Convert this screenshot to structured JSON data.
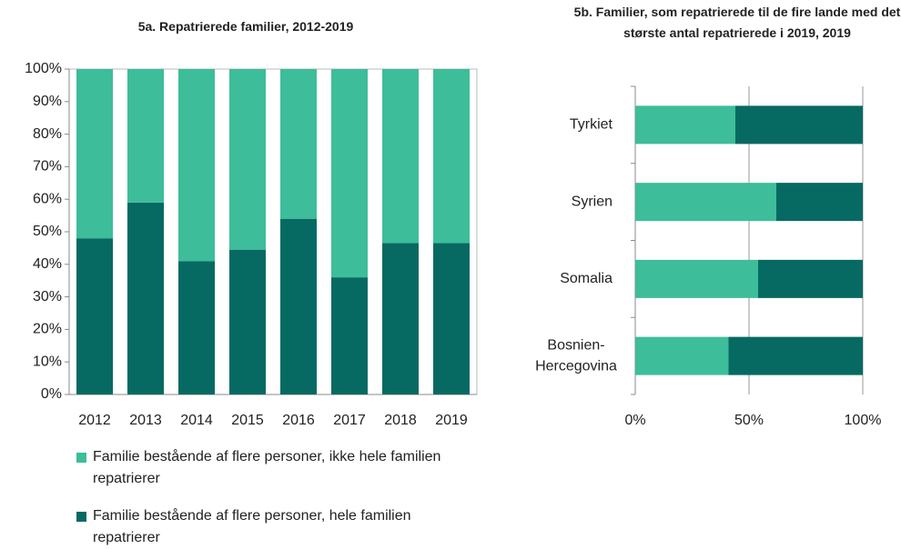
{
  "chart_data": [
    {
      "type": "stacked_bar",
      "title": "5a. Repatrierede familier, 2012-2019",
      "categories": [
        "2012",
        "2013",
        "2014",
        "2015",
        "2016",
        "2017",
        "2018",
        "2019"
      ],
      "series": [
        {
          "name": "Familie bestående af flere personer, ikke hele familien repatrierer",
          "color": "#3dbd99",
          "values": [
            52,
            41,
            59,
            55.5,
            46,
            64,
            53.5,
            53.5
          ]
        },
        {
          "name": "Familie bestående af flere personer, hele familien repatrierer",
          "color": "#066a62",
          "values": [
            48,
            59,
            41,
            44.5,
            54,
            36,
            46.5,
            46.5
          ]
        }
      ],
      "ylim": [
        0,
        100
      ],
      "yticks": [
        {
          "value": 0,
          "label": "0%"
        },
        {
          "value": 10,
          "label": "10%"
        },
        {
          "value": 20,
          "label": "20%"
        },
        {
          "value": 30,
          "label": "30%"
        },
        {
          "value": 40,
          "label": "40%"
        },
        {
          "value": 50,
          "label": "50%"
        },
        {
          "value": 60,
          "label": "60%"
        },
        {
          "value": 70,
          "label": "70%"
        },
        {
          "value": 80,
          "label": "80%"
        },
        {
          "value": 90,
          "label": "90%"
        },
        {
          "value": 100,
          "label": "100%"
        }
      ],
      "legend": "bottom"
    },
    {
      "type": "stacked_barh",
      "title": "5b. Familier, som repatrierede  til de fire lande med det største antal repatrierede i  2019, 2019",
      "categories": [
        "Tyrkiet",
        "Syrien",
        "Somalia",
        "Bosnien-Hercegovina"
      ],
      "series": [
        {
          "color": "#3dbd99",
          "values": [
            44,
            62,
            54,
            41
          ]
        },
        {
          "color": "#066a62",
          "values": [
            56,
            38,
            46,
            59
          ]
        }
      ],
      "xlim": [
        0,
        100
      ],
      "xticks": [
        {
          "value": 0,
          "label": "0%"
        },
        {
          "value": 50,
          "label": "50%"
        },
        {
          "value": 100,
          "label": "100%"
        }
      ],
      "grid": true
    }
  ]
}
